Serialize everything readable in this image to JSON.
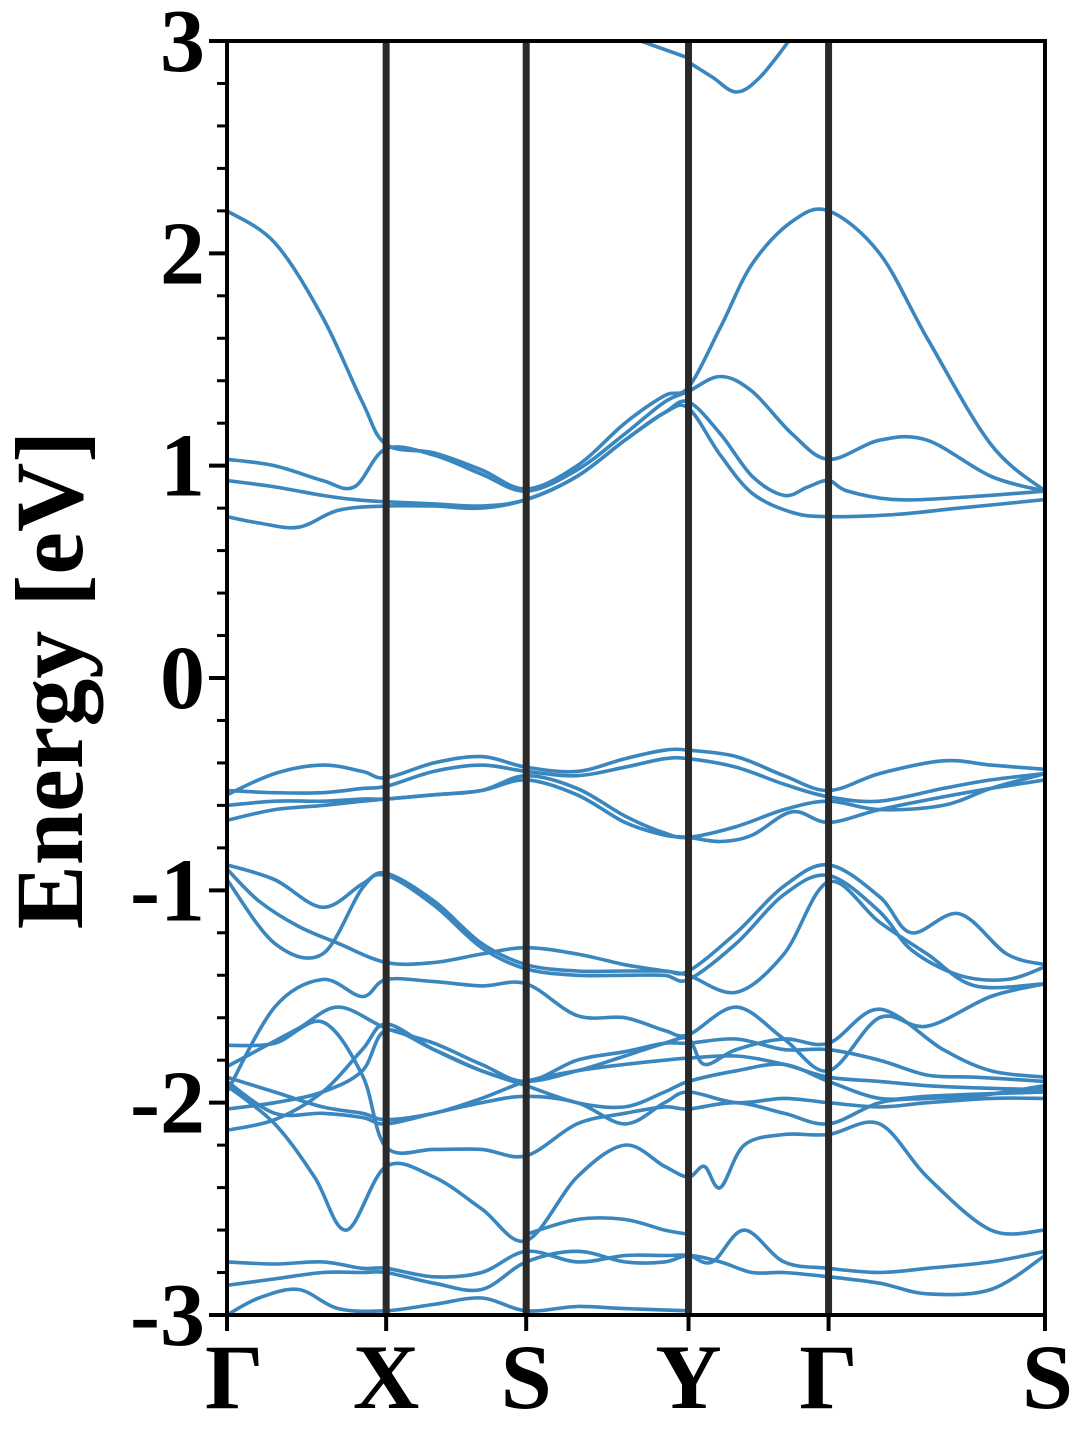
{
  "chart_data": {
    "type": "line",
    "title": "",
    "xlabel": "",
    "ylabel": "Energy [eV]",
    "ylim": [
      -3,
      3
    ],
    "xlim": [
      0,
      5.14
    ],
    "y_ticks": [
      "-3",
      "-2",
      "-1",
      "0",
      "1",
      "2",
      "3"
    ],
    "y_tick_values": [
      -3,
      -2,
      -1,
      0,
      1,
      2,
      3
    ],
    "minor_y_step": 0.2,
    "k_points": [
      {
        "label": "Γ",
        "x": 0
      },
      {
        "label": "X",
        "x": 1
      },
      {
        "label": "S",
        "x": 1.88
      },
      {
        "label": "Y",
        "x": 2.9
      },
      {
        "label": "Γ",
        "x": 3.78
      },
      {
        "label": "S",
        "x": 5.14
      }
    ],
    "colors": {
      "band": "#3a86bf",
      "divider": "#2a2a2a",
      "axis": "#000000"
    },
    "grid": false,
    "series": [
      {
        "x": [
          0,
          0.3,
          0.6,
          0.85,
          1.0,
          1.3,
          1.6,
          1.88,
          2.2,
          2.5,
          2.75,
          2.9,
          3.1,
          3.3,
          3.55,
          3.78,
          4.1,
          4.4,
          4.8,
          5.14
        ],
        "values": [
          2.2,
          2.05,
          1.7,
          1.3,
          1.1,
          1.06,
          0.98,
          0.89,
          1.0,
          1.2,
          1.33,
          1.37,
          1.65,
          1.95,
          2.15,
          2.2,
          2.0,
          1.6,
          1.1,
          0.88
        ]
      },
      {
        "x": [
          0,
          0.3,
          0.6,
          0.8,
          1.0,
          1.3,
          1.6,
          1.88,
          2.2,
          2.5,
          2.75,
          2.9,
          3.1,
          3.3,
          3.55,
          3.78,
          4.1,
          4.4,
          4.8,
          5.14
        ],
        "values": [
          1.03,
          1.0,
          0.93,
          0.9,
          1.08,
          1.05,
          0.96,
          0.88,
          0.98,
          1.15,
          1.3,
          1.35,
          1.42,
          1.35,
          1.15,
          1.03,
          1.12,
          1.12,
          0.95,
          0.88
        ]
      },
      {
        "x": [
          0,
          0.3,
          0.6,
          0.8,
          1.0,
          1.3,
          1.6,
          1.88,
          2.2,
          2.5,
          2.75,
          2.9,
          3.1,
          3.3,
          3.5,
          3.65,
          3.78,
          3.9,
          4.2,
          4.6,
          5.14
        ],
        "values": [
          0.93,
          0.9,
          0.86,
          0.84,
          0.83,
          0.82,
          0.81,
          0.84,
          0.95,
          1.12,
          1.25,
          1.3,
          1.15,
          0.95,
          0.86,
          0.9,
          0.93,
          0.88,
          0.84,
          0.85,
          0.88
        ]
      },
      {
        "x": [
          0,
          0.2,
          0.45,
          0.7,
          1.0,
          1.3,
          1.6,
          1.88,
          2.2,
          2.5,
          2.75,
          2.9,
          3.1,
          3.3,
          3.55,
          3.78,
          4.2,
          4.6,
          5.14
        ],
        "values": [
          0.76,
          0.73,
          0.71,
          0.79,
          0.81,
          0.81,
          0.8,
          0.84,
          0.95,
          1.12,
          1.25,
          1.27,
          1.05,
          0.87,
          0.78,
          0.76,
          0.77,
          0.8,
          0.84
        ]
      },
      {
        "x": [
          2.9,
          3.05,
          3.2,
          3.35,
          3.55
        ],
        "values": [
          2.9,
          2.83,
          2.76,
          2.83,
          3.02
        ]
      },
      {
        "x": [
          2.6,
          2.9
        ],
        "values": [
          3.0,
          2.92
        ]
      },
      {
        "x": [
          0,
          0.3,
          0.6,
          0.85,
          1.0,
          1.3,
          1.6,
          1.88,
          2.2,
          2.5,
          2.75,
          2.9,
          3.2,
          3.5,
          3.78,
          4.1,
          4.5,
          4.8,
          5.14
        ],
        "values": [
          -0.55,
          -0.45,
          -0.41,
          -0.44,
          -0.47,
          -0.4,
          -0.37,
          -0.42,
          -0.44,
          -0.38,
          -0.34,
          -0.34,
          -0.37,
          -0.46,
          -0.53,
          -0.45,
          -0.39,
          -0.41,
          -0.43
        ]
      },
      {
        "x": [
          0,
          0.3,
          0.6,
          0.85,
          1.0,
          1.3,
          1.6,
          1.88,
          2.2,
          2.5,
          2.75,
          2.9,
          3.2,
          3.5,
          3.78,
          4.1,
          4.5,
          4.8,
          5.14
        ],
        "values": [
          -0.53,
          -0.54,
          -0.54,
          -0.52,
          -0.51,
          -0.44,
          -0.41,
          -0.44,
          -0.46,
          -0.42,
          -0.38,
          -0.38,
          -0.42,
          -0.5,
          -0.56,
          -0.58,
          -0.52,
          -0.48,
          -0.45
        ]
      },
      {
        "x": [
          0,
          0.3,
          0.6,
          0.85,
          1.0,
          1.3,
          1.6,
          1.88,
          2.2,
          2.5,
          2.75,
          2.9,
          3.2,
          3.5,
          3.78,
          4.1,
          4.5,
          4.8,
          5.14
        ],
        "values": [
          -0.6,
          -0.58,
          -0.58,
          -0.57,
          -0.57,
          -0.55,
          -0.53,
          -0.46,
          -0.52,
          -0.65,
          -0.73,
          -0.75,
          -0.7,
          -0.62,
          -0.58,
          -0.62,
          -0.6,
          -0.52,
          -0.45
        ]
      },
      {
        "x": [
          0,
          0.3,
          0.6,
          0.85,
          1.0,
          1.3,
          1.6,
          1.88,
          2.2,
          2.5,
          2.75,
          2.9,
          3.1,
          3.3,
          3.55,
          3.78,
          4.1,
          4.5,
          4.8,
          5.14
        ],
        "values": [
          -0.67,
          -0.62,
          -0.6,
          -0.58,
          -0.57,
          -0.55,
          -0.53,
          -0.48,
          -0.55,
          -0.68,
          -0.74,
          -0.75,
          -0.77,
          -0.74,
          -0.63,
          -0.68,
          -0.62,
          -0.56,
          -0.52,
          -0.48
        ]
      },
      {
        "x": [
          0,
          0.3,
          0.6,
          0.85,
          1.0,
          1.3,
          1.6,
          1.88,
          2.2,
          2.5,
          2.75,
          2.9,
          3.2,
          3.5,
          3.78,
          4.1,
          4.3,
          4.6,
          4.9,
          5.14
        ],
        "values": [
          -0.88,
          -0.95,
          -1.08,
          -0.97,
          -0.92,
          -1.05,
          -1.25,
          -1.35,
          -1.38,
          -1.38,
          -1.38,
          -1.38,
          -1.2,
          -0.98,
          -0.88,
          -1.03,
          -1.2,
          -1.11,
          -1.3,
          -1.35
        ]
      },
      {
        "x": [
          0,
          0.3,
          0.6,
          0.85,
          1.0,
          1.3,
          1.6,
          1.88,
          2.2,
          2.5,
          2.75,
          2.9,
          3.2,
          3.5,
          3.78,
          4.1,
          4.3,
          4.6,
          4.9,
          5.14
        ],
        "values": [
          -0.95,
          -1.25,
          -1.3,
          -0.99,
          -0.93,
          -1.07,
          -1.27,
          -1.37,
          -1.4,
          -1.4,
          -1.4,
          -1.42,
          -1.25,
          -1.02,
          -0.93,
          -1.1,
          -1.28,
          -1.4,
          -1.42,
          -1.36
        ]
      },
      {
        "x": [
          0,
          0.2,
          0.45,
          0.7,
          1.0,
          1.3,
          1.6,
          1.88,
          2.2,
          2.5,
          2.75,
          2.9,
          3.2,
          3.5,
          3.78,
          4.1,
          4.4,
          4.7,
          5.14
        ],
        "values": [
          -0.9,
          -1.05,
          -1.17,
          -1.25,
          -1.34,
          -1.34,
          -1.3,
          -1.27,
          -1.3,
          -1.35,
          -1.38,
          -1.4,
          -1.48,
          -1.3,
          -0.96,
          -1.15,
          -1.3,
          -1.45,
          -1.44
        ]
      },
      {
        "x": [
          0,
          0.3,
          0.6,
          0.85,
          1.0,
          1.3,
          1.6,
          1.88,
          2.2,
          2.5,
          2.75,
          2.9,
          3.2,
          3.5,
          3.78,
          4.1,
          4.4,
          4.8,
          5.14
        ],
        "values": [
          -1.95,
          -1.55,
          -1.42,
          -1.5,
          -1.42,
          -1.43,
          -1.45,
          -1.44,
          -1.59,
          -1.6,
          -1.66,
          -1.68,
          -1.55,
          -1.7,
          -1.85,
          -1.6,
          -1.64,
          -1.5,
          -1.44
        ]
      },
      {
        "x": [
          0,
          0.3,
          0.6,
          0.85,
          1.0,
          1.3,
          1.6,
          1.88,
          2.2,
          2.5,
          2.75,
          2.9,
          3.2,
          3.5,
          3.78,
          4.1,
          4.4,
          4.7,
          5.14
        ],
        "values": [
          -1.73,
          -1.72,
          -1.62,
          -1.87,
          -2.21,
          -2.22,
          -2.22,
          -2.25,
          -2.1,
          -2.05,
          -2.02,
          -2.03,
          -2.0,
          -2.05,
          -2.1,
          -2.0,
          -1.98,
          -1.97,
          -1.92
        ]
      },
      {
        "x": [
          0,
          0.2,
          0.45,
          0.7,
          1.0,
          1.3,
          1.6,
          1.88,
          2.2,
          2.5,
          2.75,
          2.9,
          3.2,
          3.5,
          3.78,
          4.1,
          4.4,
          4.7,
          5.14
        ],
        "values": [
          -1.83,
          -1.75,
          -1.65,
          -1.55,
          -1.65,
          -1.72,
          -1.82,
          -1.9,
          -1.8,
          -1.76,
          -1.72,
          -1.72,
          -1.7,
          -1.75,
          -1.75,
          -1.8,
          -1.87,
          -1.88,
          -1.9
        ]
      },
      {
        "x": [
          0,
          0.3,
          0.6,
          0.85,
          1.0,
          1.3,
          1.6,
          1.88,
          2.2,
          2.5,
          2.75,
          2.9,
          3.2,
          3.5,
          3.78,
          4.1,
          4.4,
          4.7,
          5.14
        ],
        "values": [
          -1.88,
          -1.95,
          -2.02,
          -2.05,
          -2.08,
          -2.05,
          -1.98,
          -1.9,
          -1.85,
          -1.82,
          -1.8,
          -1.79,
          -1.78,
          -1.82,
          -1.88,
          -1.9,
          -1.92,
          -1.93,
          -1.94
        ]
      },
      {
        "x": [
          0,
          0.3,
          0.6,
          0.85,
          1.0,
          1.3,
          1.6,
          1.88,
          2.2,
          2.5,
          2.75,
          2.9,
          3.2,
          3.5,
          3.78,
          4.1,
          4.4,
          4.7,
          5.14
        ],
        "values": [
          -2.03,
          -2.0,
          -1.95,
          -1.85,
          -1.66,
          -1.75,
          -1.85,
          -1.92,
          -2.0,
          -2.02,
          -1.95,
          -1.9,
          -1.85,
          -1.82,
          -1.9,
          -1.98,
          -1.97,
          -1.96,
          -1.95
        ]
      },
      {
        "x": [
          0,
          0.3,
          0.6,
          0.85,
          1.0,
          1.3,
          1.6,
          1.88,
          2.2,
          2.5,
          2.75,
          2.9,
          3.0,
          3.2,
          3.5,
          3.78,
          4.1,
          4.5,
          4.8,
          5.14
        ],
        "values": [
          -2.13,
          -2.08,
          -1.95,
          -1.75,
          -1.63,
          -1.75,
          -1.85,
          -1.9,
          -1.85,
          -1.78,
          -1.72,
          -1.7,
          -1.82,
          -1.75,
          -1.7,
          -1.72,
          -1.56,
          -1.75,
          -1.85,
          -1.88
        ]
      },
      {
        "x": [
          0,
          0.3,
          0.6,
          0.85,
          1.0,
          1.3,
          1.6,
          1.88,
          2.2,
          2.5,
          2.75,
          2.9,
          3.2,
          3.5,
          3.78,
          4.1,
          4.4,
          4.8,
          5.14
        ],
        "values": [
          -1.9,
          -2.05,
          -2.05,
          -2.07,
          -2.1,
          -2.05,
          -2.0,
          -1.97,
          -2.0,
          -2.1,
          -2.0,
          -1.95,
          -2.0,
          -1.98,
          -2.0,
          -2.02,
          -2.0,
          -1.98,
          -1.98
        ]
      },
      {
        "x": [
          0,
          0.3,
          0.55,
          0.75,
          1.0,
          1.3,
          1.6,
          1.88,
          2.2,
          2.5,
          2.75,
          2.9,
          3.0,
          3.1,
          3.25,
          3.5,
          3.78,
          4.1,
          4.4,
          4.8,
          5.14
        ],
        "values": [
          -1.92,
          -2.1,
          -2.35,
          -2.6,
          -2.3,
          -2.35,
          -2.5,
          -2.65,
          -2.35,
          -2.2,
          -2.3,
          -2.35,
          -2.3,
          -2.4,
          -2.2,
          -2.15,
          -2.15,
          -2.1,
          -2.35,
          -2.6,
          -2.6
        ]
      },
      {
        "x": [
          0,
          0.3,
          0.6,
          0.85,
          1.0,
          1.3,
          1.6,
          1.88,
          2.2,
          2.5,
          2.75,
          2.9,
          3.05,
          3.25,
          3.5,
          3.78,
          4.1,
          4.4,
          4.8,
          5.14
        ],
        "values": [
          -2.75,
          -2.76,
          -2.75,
          -2.78,
          -2.78,
          -2.82,
          -2.8,
          -2.7,
          -2.75,
          -2.72,
          -2.72,
          -2.72,
          -2.75,
          -2.6,
          -2.75,
          -2.78,
          -2.8,
          -2.78,
          -2.75,
          -2.7
        ]
      },
      {
        "x": [
          0,
          0.3,
          0.6,
          0.85,
          1.0,
          1.3,
          1.6,
          1.88,
          2.2,
          2.5,
          2.75,
          2.9,
          3.1,
          3.3,
          3.5,
          3.78,
          4.1,
          4.4,
          4.8,
          5.14
        ],
        "values": [
          -2.86,
          -2.83,
          -2.8,
          -2.8,
          -2.8,
          -2.85,
          -2.88,
          -2.75,
          -2.7,
          -2.75,
          -2.75,
          -2.72,
          -2.75,
          -2.8,
          -2.8,
          -2.82,
          -2.85,
          -2.9,
          -2.88,
          -2.72
        ]
      },
      {
        "x": [
          1.88,
          2.2,
          2.5,
          2.75,
          2.9
        ],
        "values": [
          -2.62,
          -2.55,
          -2.55,
          -2.6,
          -2.62
        ]
      },
      {
        "x": [
          0,
          0.2,
          0.45,
          0.7,
          1.0,
          1.3,
          1.6,
          1.88,
          2.2,
          2.5,
          2.9
        ],
        "values": [
          -3.0,
          -2.92,
          -2.88,
          -2.97,
          -2.98,
          -2.95,
          -2.92,
          -2.98,
          -2.96,
          -2.97,
          -2.98
        ]
      }
    ]
  }
}
